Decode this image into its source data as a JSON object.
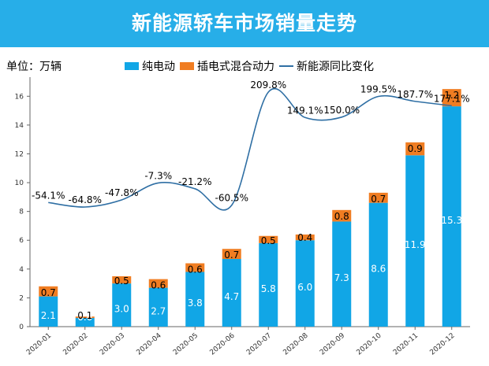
{
  "banner": {
    "title": "新能源轿车市场销量走势"
  },
  "unit_label": "单位：万辆",
  "legend": {
    "bev": "纯电动",
    "phev": "插电式混合动力",
    "yoy": "新能源同比变化"
  },
  "colors": {
    "bev": "#11a6e6",
    "phev": "#f07d22",
    "line": "#2f6fa4",
    "banner": "#27aee8"
  },
  "chart_data": {
    "type": "bar",
    "stacked": true,
    "categories": [
      "2020-01",
      "2020-02",
      "2020-03",
      "2020-04",
      "2020-05",
      "2020-06",
      "2020-07",
      "2020-08",
      "2020-09",
      "2020-10",
      "2020-11",
      "2020-12"
    ],
    "series": [
      {
        "name": "纯电动",
        "values": [
          2.1,
          0.6,
          3.0,
          2.7,
          3.8,
          4.7,
          5.8,
          6.0,
          7.3,
          8.6,
          11.9,
          15.3
        ]
      },
      {
        "name": "插电式混合动力",
        "values": [
          0.7,
          0.1,
          0.5,
          0.6,
          0.6,
          0.7,
          0.5,
          0.4,
          0.8,
          0.7,
          0.9,
          1.2
        ]
      }
    ],
    "line_series": {
      "name": "新能源同比变化",
      "labels": [
        "-54.1%",
        "-64.8%",
        "-47.8%",
        "-7.3%",
        "-21.2%",
        "-60.5%",
        "209.8%",
        "149.1%",
        "150.0%",
        "199.5%",
        "187.7%",
        "177.1%"
      ]
    },
    "ylim": [
      0,
      17
    ],
    "yticks": [
      0,
      2,
      4,
      6,
      8,
      10,
      12,
      14,
      16
    ],
    "ylabel": "万辆"
  }
}
